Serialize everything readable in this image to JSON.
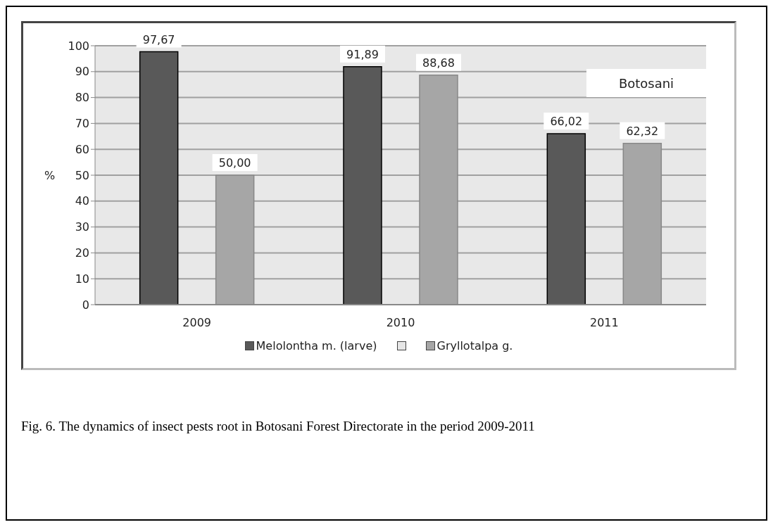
{
  "chart_data": {
    "type": "bar",
    "categories": [
      "2009",
      "2010",
      "2011"
    ],
    "series": [
      {
        "name": "Melolontha m. (larve)",
        "color": "#595959",
        "values": [
          97.67,
          91.89,
          66.02
        ],
        "value_labels": [
          "97,67",
          "91,89",
          "66,02"
        ]
      },
      {
        "color": "#e6e6e6",
        "values": [
          null,
          null,
          null
        ]
      },
      {
        "name": "Gryllotalpa g.",
        "color": "#a6a6a6",
        "values": [
          50.0,
          88.68,
          62.32
        ],
        "value_labels": [
          "50,00",
          "88,68",
          "62,32"
        ]
      }
    ],
    "ylabel": "%",
    "ylim": [
      0,
      100
    ],
    "yticks": [
      0,
      10,
      20,
      30,
      40,
      50,
      60,
      70,
      80,
      90,
      100
    ],
    "grid": "y",
    "legend": "bottom",
    "annotations": [
      "Botosani",
      "Fig. 6. The dynamics of insect pests root in Botosani Forest Directorate in the period 2009-2011"
    ]
  }
}
